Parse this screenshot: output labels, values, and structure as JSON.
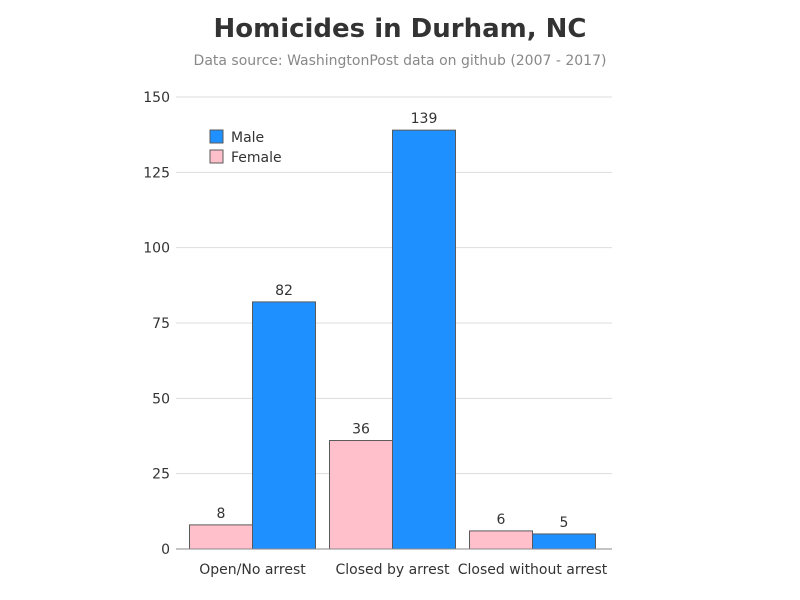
{
  "chart_data": {
    "type": "bar",
    "title": "Homicides in Durham, NC",
    "subtitle": "Data source: WashingtonPost data on github (2007 - 2017)",
    "xlabel": "",
    "ylabel": "",
    "categories": [
      "Open/No arrest",
      "Closed by arrest",
      "Closed without arrest"
    ],
    "series": [
      {
        "name": "Female",
        "values": [
          8,
          36,
          6
        ],
        "color": "#ffc0cb"
      },
      {
        "name": "Male",
        "values": [
          82,
          139,
          5
        ],
        "color": "#1e90ff"
      }
    ],
    "ylim": [
      0,
      150
    ],
    "yticks": [
      0,
      25,
      50,
      75,
      100,
      125,
      150
    ],
    "grid": true,
    "legend_position": "top-left",
    "legend_order": [
      "Male",
      "Female"
    ],
    "data_labels": true
  }
}
